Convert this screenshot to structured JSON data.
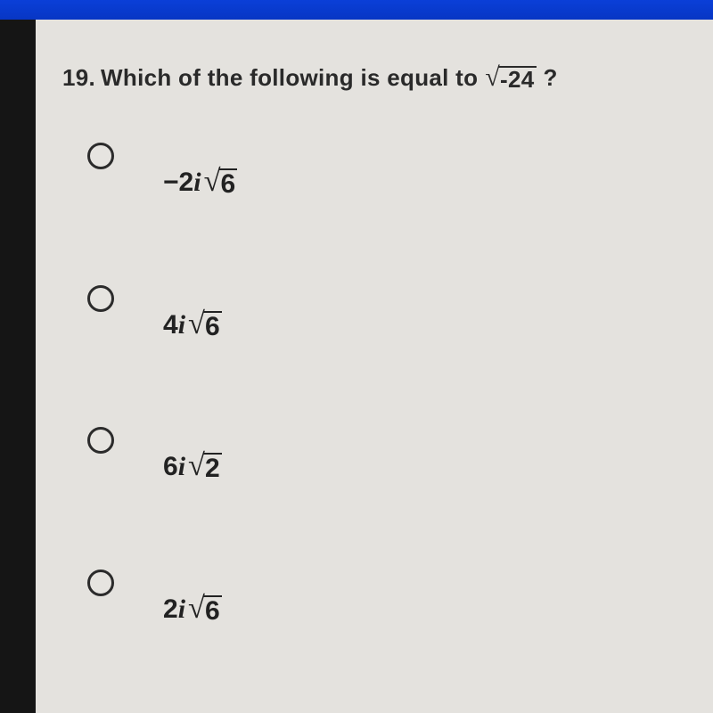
{
  "colors": {
    "page_bg": "#e4e2de",
    "outer_bg": "#151515",
    "blue_bar": "#0736c4",
    "text": "#2a2a2a",
    "radio_border": "#2b2b2b"
  },
  "question": {
    "number": "19.",
    "text_before": "Which of the following is equal to",
    "sqrt_value": "-24",
    "text_after": "?"
  },
  "options": [
    {
      "neg": "−",
      "coef": "2",
      "i": "i",
      "radicand": "6"
    },
    {
      "neg": "",
      "coef": "4",
      "i": "i",
      "radicand": "6"
    },
    {
      "neg": "",
      "coef": "6",
      "i": "i",
      "radicand": "2"
    },
    {
      "neg": "",
      "coef": "2",
      "i": "i",
      "radicand": "6"
    }
  ]
}
